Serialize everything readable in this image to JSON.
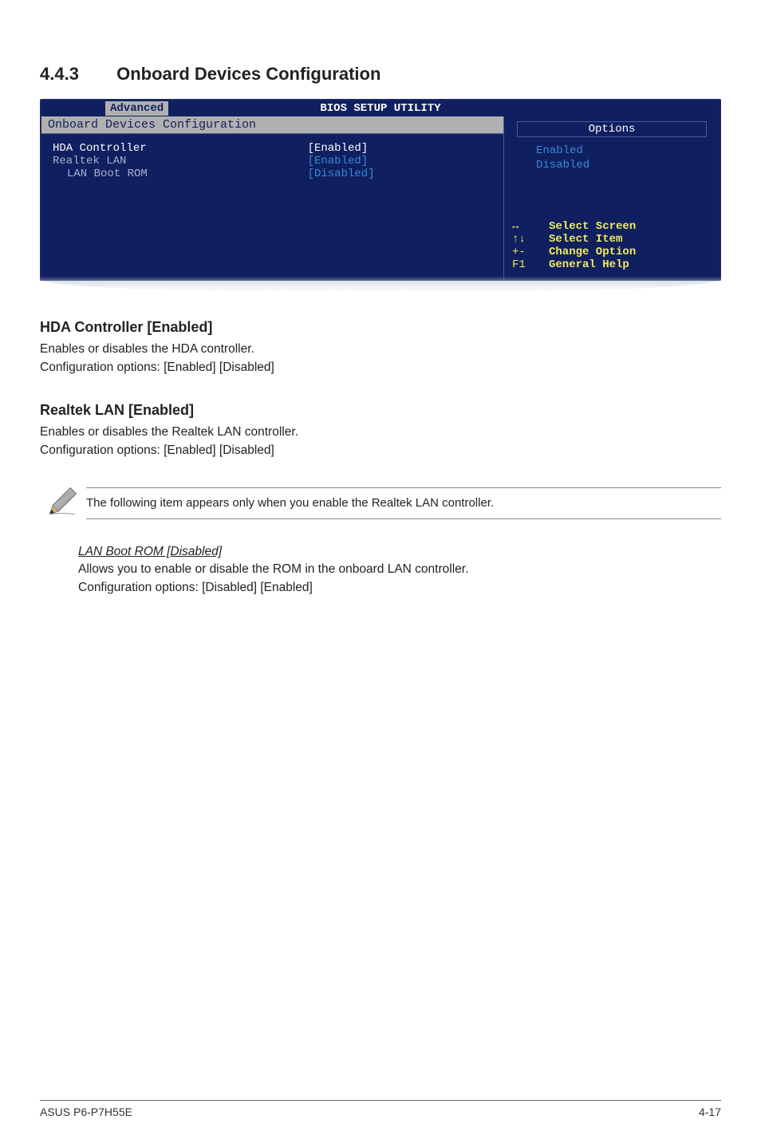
{
  "section": {
    "number": "4.4.3",
    "title": "Onboard Devices Configuration"
  },
  "bios": {
    "title": "BIOS SETUP UTILITY",
    "tab": "Advanced",
    "panel_header": "Onboard Devices Configuration",
    "rows": [
      {
        "label": "HDA Controller",
        "value": "[Enabled]",
        "selected": true,
        "indent": false
      },
      {
        "label": "Realtek LAN",
        "value": "[Enabled]",
        "selected": false,
        "indent": false
      },
      {
        "label": "LAN Boot ROM",
        "value": "[Disabled]",
        "selected": false,
        "indent": true
      }
    ],
    "options_title": "Options",
    "options": [
      "Enabled",
      "Disabled"
    ],
    "help": [
      {
        "key": "↔",
        "text": "Select Screen"
      },
      {
        "key": "↑↓",
        "text": "Select Item"
      },
      {
        "key": "+-",
        "text": "Change Option"
      },
      {
        "key": "F1",
        "text": "General Help"
      }
    ],
    "colors": {
      "bg": "#0f1f5f",
      "header_gray": "#b0b0b0",
      "value_blue": "#3a8ad8",
      "dim_label": "#aab0d0",
      "help_yellow": "#f0e860"
    }
  },
  "hda": {
    "heading": "HDA Controller [Enabled]",
    "line1": "Enables or disables the HDA controller.",
    "line2": "Configuration options: [Enabled] [Disabled]"
  },
  "realtek": {
    "heading": "Realtek LAN [Enabled]",
    "line1": "Enables or disables the Realtek LAN controller.",
    "line2": "Configuration options: [Enabled] [Disabled]"
  },
  "note": {
    "text": "The following item appears only when you enable the Realtek LAN controller."
  },
  "lanboot": {
    "heading": "LAN Boot ROM [Disabled]",
    "line1": "Allows you to enable or disable the ROM in the onboard LAN controller.",
    "line2": "Configuration options: [Disabled] [Enabled]"
  },
  "footer": {
    "left": "ASUS P6-P7H55E",
    "right": "4-17"
  }
}
